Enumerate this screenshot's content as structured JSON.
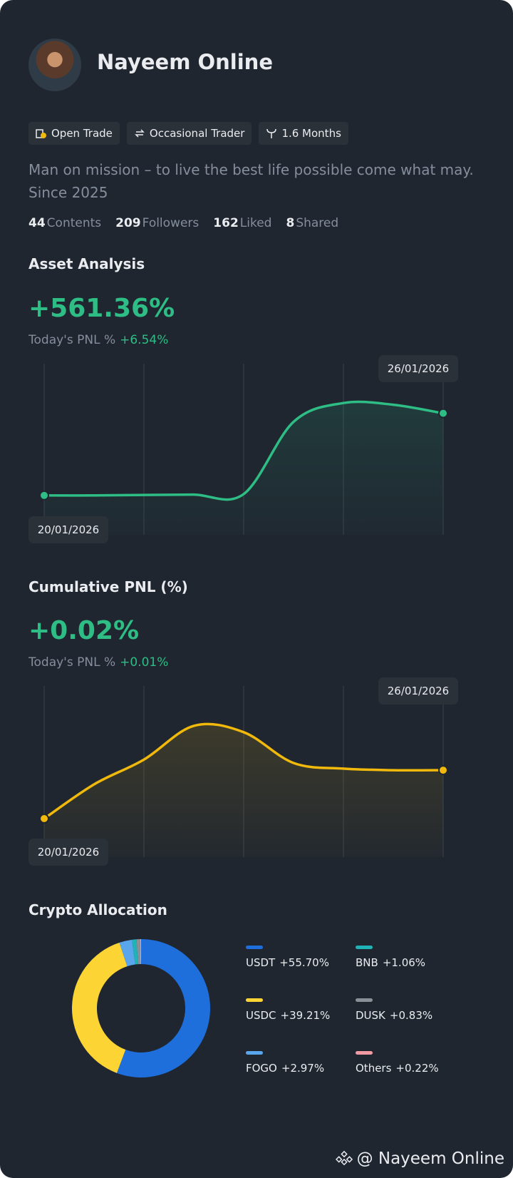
{
  "profile": {
    "name": "Nayeem Online",
    "tags": [
      "Open Trade",
      "Occasional Trader",
      "1.6 Months"
    ],
    "bio_lines": [
      "Man on mission – to live the best life possible come what may.",
      "Since 2025"
    ],
    "stats": [
      {
        "value": "44",
        "label": "Contents"
      },
      {
        "value": "209",
        "label": "Followers"
      },
      {
        "value": "162",
        "label": "Liked"
      },
      {
        "value": "8",
        "label": "Shared"
      }
    ]
  },
  "asset_analysis": {
    "title": "Asset Analysis",
    "total": "+561.36%",
    "today_label": "Today's PNL %",
    "today_value": "+6.54%",
    "chart": {
      "type": "line",
      "categories": [
        "20/01/2026",
        null,
        null,
        null,
        null,
        null,
        null,
        null,
        "26/01/2026"
      ],
      "values": [
        23,
        23,
        23.3,
        23.5,
        23.8,
        66,
        77,
        76,
        71
      ],
      "color": "#2ebd85",
      "ylim": [
        0,
        100
      ]
    }
  },
  "cumulative_pnl": {
    "title": "Cumulative PNL (%)",
    "total": "+0.02%",
    "today_label": "Today's PNL %",
    "today_value": "+0.01%",
    "chart": {
      "type": "line",
      "categories": [
        "20/01/2026",
        null,
        null,
        null,
        null,
        null,
        null,
        null,
        "26/01/2026"
      ],
      "values": [
        22.5,
        42.5,
        57,
        76.7,
        73,
        55,
        51.7,
        50.8,
        50.8
      ],
      "color": "#f0b90b",
      "ylim": [
        0,
        100
      ]
    }
  },
  "crypto_allocation": {
    "title": "Crypto Allocation",
    "chart": {
      "type": "pie",
      "categories": [
        "USDT",
        "USDC",
        "FOGO",
        "BNB",
        "DUSK",
        "Others"
      ],
      "values": [
        55.7,
        39.21,
        2.97,
        1.06,
        0.83,
        0.22
      ],
      "value_labels": [
        "+55.70%",
        "+39.21%",
        "+2.97%",
        "+1.06%",
        "+0.83%",
        "+0.22%"
      ],
      "colors": [
        "#1e6fdc",
        "#fcd535",
        "#5aa6ec",
        "#1fb3b8",
        "#8a8f98",
        "#f29ba3"
      ]
    }
  },
  "watermark": "@ Nayeem Online"
}
